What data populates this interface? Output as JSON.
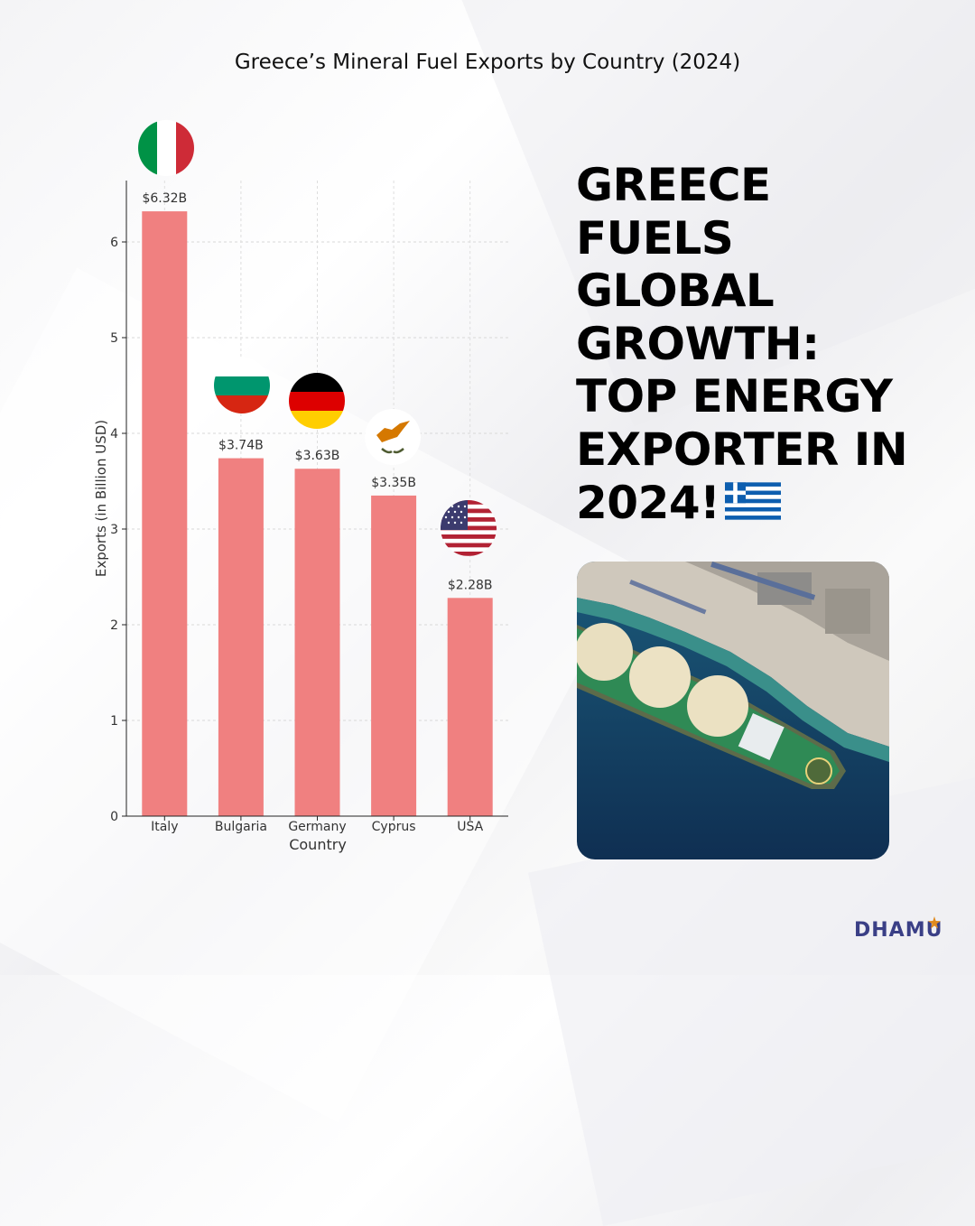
{
  "chart_data": {
    "type": "bar",
    "title": "Greece’s Mineral Fuel Exports by Country (2024)",
    "xlabel": "Country",
    "ylabel": "Exports (in Billion USD)",
    "categories": [
      "Italy",
      "Bulgaria",
      "Germany",
      "Cyprus",
      "USA"
    ],
    "values": [
      6.32,
      3.74,
      3.63,
      3.35,
      2.28
    ],
    "data_labels": [
      "$6.32B",
      "$3.74B",
      "$3.63B",
      "$3.35B",
      "$2.28B"
    ],
    "yticks": [
      "0",
      "1",
      "2",
      "3",
      "4",
      "5",
      "6"
    ],
    "ylim": [
      0,
      6.6
    ],
    "grid": true,
    "bar_color": "#f08080",
    "flags": [
      "italy-flag-icon",
      "bulgaria-flag-icon",
      "germany-flag-icon",
      "cyprus-flag-icon",
      "usa-flag-icon"
    ]
  },
  "headline": {
    "lines": [
      "GREECE",
      "FUELS",
      "GLOBAL",
      "GROWTH:",
      "TOP ENERGY",
      "EXPORTER IN",
      "2024!"
    ],
    "flag_icon": "greece-flag-icon"
  },
  "photo": {
    "icon": "lng-tanker-ship-aerial-photo"
  },
  "brand": {
    "name": "DHAMU",
    "color": "#3a3f86"
  }
}
